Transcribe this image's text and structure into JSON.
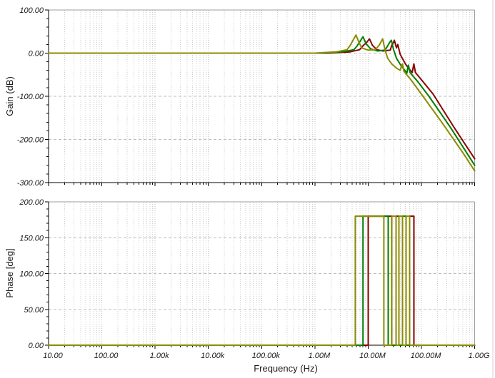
{
  "window": {
    "background": "#ffffff",
    "edge_color": "#e9e9e9"
  },
  "colors": {
    "dark_red": "#8B0000",
    "green": "#007D00",
    "olive": "#8B8B00"
  },
  "chart_data": [
    {
      "type": "line",
      "plot": "gain",
      "title": "",
      "xlabel": "Frequency (Hz)",
      "ylabel": "Gain (dB)",
      "x_scale": "log",
      "xlim": [
        10,
        1000000000
      ],
      "ylim": [
        -300,
        100
      ],
      "grid": true,
      "legend": false,
      "y_major_step": 100,
      "y_minor_step": 20,
      "y_ticks": [
        {
          "v": 100,
          "label": "100.00"
        },
        {
          "v": 0,
          "label": "0.00"
        },
        {
          "v": -100,
          "label": "-100.00"
        },
        {
          "v": -200,
          "label": "-200.00"
        },
        {
          "v": -300,
          "label": "-300.00"
        }
      ],
      "x_ticks": [
        {
          "v": 10,
          "label": "10.00"
        },
        {
          "v": 100,
          "label": "100.00"
        },
        {
          "v": 1000,
          "label": "1.00k"
        },
        {
          "v": 10000,
          "label": "10.00k"
        },
        {
          "v": 100000,
          "label": "100.00k"
        },
        {
          "v": 1000000,
          "label": "1.00M"
        },
        {
          "v": 10000000,
          "label": "10.00M"
        },
        {
          "v": 100000000,
          "label": "100.00M"
        },
        {
          "v": 1000000000,
          "label": "1.00G"
        }
      ],
      "series": [
        {
          "name": "dark-red",
          "color": "#8B0000",
          "points": [
            [
              10,
              0
            ],
            [
              1800000,
              0
            ],
            [
              4600000,
              3
            ],
            [
              6900000,
              8
            ],
            [
              8000000,
              17
            ],
            [
              9400000,
              25
            ],
            [
              10600000,
              33
            ],
            [
              12000000,
              18
            ],
            [
              14500000,
              8
            ],
            [
              19000000,
              5
            ],
            [
              26000000,
              7
            ],
            [
              27700000,
              18
            ],
            [
              30000000,
              25
            ],
            [
              31000000,
              30
            ],
            [
              34000000,
              12
            ],
            [
              36000000,
              20
            ],
            [
              40000000,
              -3
            ],
            [
              50000000,
              -25
            ],
            [
              59000000,
              -37
            ],
            [
              67000000,
              -45
            ],
            [
              72000000,
              -25
            ],
            [
              77000000,
              -45
            ],
            [
              105000000,
              -65
            ],
            [
              166000000,
              -95
            ],
            [
              410000000,
              -172
            ],
            [
              1000000000,
              -245
            ]
          ]
        },
        {
          "name": "green",
          "color": "#007D00",
          "points": [
            [
              10,
              0
            ],
            [
              1340000,
              0
            ],
            [
              3200000,
              3
            ],
            [
              5400000,
              8
            ],
            [
              6300000,
              18
            ],
            [
              7100000,
              28
            ],
            [
              8000000,
              38
            ],
            [
              9100000,
              22
            ],
            [
              11100000,
              10
            ],
            [
              15100000,
              5
            ],
            [
              20700000,
              7
            ],
            [
              23300000,
              17
            ],
            [
              25400000,
              25
            ],
            [
              27200000,
              30
            ],
            [
              30000000,
              8
            ],
            [
              34000000,
              -12
            ],
            [
              41000000,
              -28
            ],
            [
              49000000,
              -40
            ],
            [
              53000000,
              -47
            ],
            [
              56000000,
              -32
            ],
            [
              57000000,
              -28
            ],
            [
              61000000,
              -45
            ],
            [
              84000000,
              -65
            ],
            [
              138000000,
              -100
            ],
            [
              350000000,
              -172
            ],
            [
              1000000000,
              -260
            ]
          ]
        },
        {
          "name": "olive",
          "color": "#8B8B00",
          "points": [
            [
              10,
              0
            ],
            [
              980000,
              0
            ],
            [
              2500000,
              3
            ],
            [
              4000000,
              8
            ],
            [
              4600000,
              18
            ],
            [
              5200000,
              30
            ],
            [
              5900000,
              42
            ],
            [
              6700000,
              25
            ],
            [
              7600000,
              12
            ],
            [
              10000000,
              7
            ],
            [
              13600000,
              8
            ],
            [
              16000000,
              18
            ],
            [
              18700000,
              33
            ],
            [
              20700000,
              8
            ],
            [
              23300000,
              -12
            ],
            [
              27700000,
              -25
            ],
            [
              34300000,
              -35
            ],
            [
              40000000,
              -40
            ],
            [
              42500000,
              -28
            ],
            [
              44100000,
              -25
            ],
            [
              46800000,
              -42
            ],
            [
              63600000,
              -62
            ],
            [
              100000000,
              -95
            ],
            [
              256000000,
              -165
            ],
            [
              650000000,
              -237
            ],
            [
              1000000000,
              -273
            ]
          ]
        }
      ]
    },
    {
      "type": "line",
      "plot": "phase",
      "title": "",
      "xlabel": "Frequency (Hz)",
      "ylabel": "Phase [deg]",
      "x_scale": "log",
      "xlim": [
        10,
        1000000000
      ],
      "ylim": [
        0,
        200
      ],
      "grid": true,
      "legend": false,
      "y_major_step": 50,
      "y_minor_step": 10,
      "y_ticks": [
        {
          "v": 200,
          "label": "200.00"
        },
        {
          "v": 150,
          "label": "150.00"
        },
        {
          "v": 100,
          "label": "100.00"
        },
        {
          "v": 50,
          "label": "50.00"
        },
        {
          "v": 0,
          "label": "0.00"
        }
      ],
      "x_ticks": [
        {
          "v": 10,
          "label": "10.00"
        },
        {
          "v": 100,
          "label": "100.00"
        },
        {
          "v": 1000,
          "label": "1.00k"
        },
        {
          "v": 10000,
          "label": "10.00k"
        },
        {
          "v": 100000,
          "label": "100.00k"
        },
        {
          "v": 1000000,
          "label": "1.00M"
        },
        {
          "v": 10000000,
          "label": "10.00M"
        },
        {
          "v": 100000000,
          "label": "100.00M"
        },
        {
          "v": 1000000000,
          "label": "1.00G"
        }
      ],
      "series": [
        {
          "name": "dark-red",
          "color": "#8B0000",
          "points": [
            [
              10,
              0
            ],
            [
              10000000,
              0
            ],
            [
              10000000,
              180
            ],
            [
              27700000,
              180
            ],
            [
              27700000,
              0
            ],
            [
              33400000,
              0
            ],
            [
              33400000,
              180
            ],
            [
              37800000,
              180
            ],
            [
              37800000,
              0
            ],
            [
              60100000,
              0
            ],
            [
              60100000,
              180
            ],
            [
              72300000,
              180
            ],
            [
              72300000,
              0
            ],
            [
              1000000000,
              0
            ]
          ]
        },
        {
          "name": "green",
          "color": "#007D00",
          "points": [
            [
              10,
              0
            ],
            [
              8000000,
              0
            ],
            [
              8000000,
              180
            ],
            [
              23800000,
              180
            ],
            [
              23800000,
              0
            ],
            [
              44100000,
              0
            ],
            [
              44100000,
              180
            ],
            [
              51400000,
              180
            ],
            [
              51400000,
              0
            ],
            [
              1000000000,
              0
            ]
          ]
        },
        {
          "name": "olive",
          "color": "#8B8B00",
          "points": [
            [
              10,
              0
            ],
            [
              5730000,
              0
            ],
            [
              5730000,
              180
            ],
            [
              19700000,
              180
            ],
            [
              19700000,
              0
            ],
            [
              27700000,
              0
            ],
            [
              27700000,
              180
            ],
            [
              33400000,
              180
            ],
            [
              33400000,
              0
            ],
            [
              37800000,
              0
            ],
            [
              37800000,
              180
            ],
            [
              44100000,
              180
            ],
            [
              44100000,
              0
            ],
            [
              51400000,
              0
            ],
            [
              51400000,
              180
            ],
            [
              60100000,
              180
            ],
            [
              60100000,
              0
            ],
            [
              1000000000,
              0
            ]
          ]
        }
      ]
    }
  ]
}
